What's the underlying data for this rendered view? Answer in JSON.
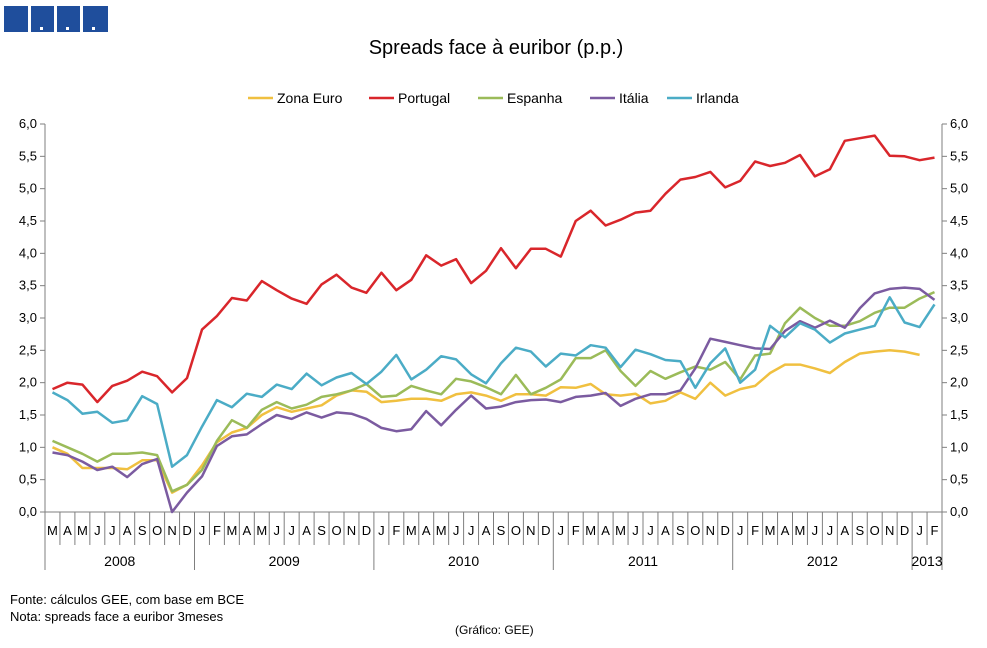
{
  "chart_data": {
    "type": "line",
    "title": "Spreads face à euribor (p.p.)",
    "ylim": [
      0,
      6
    ],
    "y_ticks": [
      "0,0",
      "0,5",
      "1,0",
      "1,5",
      "2,0",
      "2,5",
      "3,0",
      "3,5",
      "4,0",
      "4,5",
      "5,0",
      "5,5",
      "6,0"
    ],
    "y_tick_values": [
      0,
      0.5,
      1,
      1.5,
      2,
      2.5,
      3,
      3.5,
      4,
      4.5,
      5,
      5.5,
      6
    ],
    "grid": false,
    "legend_position": "top",
    "months": [
      "M",
      "A",
      "M",
      "J",
      "J",
      "A",
      "S",
      "O",
      "N",
      "D",
      "J",
      "F",
      "M",
      "A",
      "M",
      "J",
      "J",
      "A",
      "S",
      "O",
      "N",
      "D",
      "J",
      "F",
      "M",
      "A",
      "M",
      "J",
      "J",
      "A",
      "S",
      "O",
      "N",
      "D",
      "J",
      "F",
      "M",
      "A",
      "M",
      "J",
      "J",
      "A",
      "S",
      "O",
      "N",
      "D",
      "J",
      "F",
      "M",
      "A",
      "M",
      "J",
      "J",
      "A",
      "S",
      "O",
      "N",
      "D",
      "J",
      "F"
    ],
    "years": [
      {
        "label": "2008",
        "start": 0,
        "end": 10
      },
      {
        "label": "2009",
        "start": 10,
        "end": 22
      },
      {
        "label": "2010",
        "start": 22,
        "end": 34
      },
      {
        "label": "2011",
        "start": 34,
        "end": 46
      },
      {
        "label": "2012",
        "start": 46,
        "end": 58
      },
      {
        "label": "2013",
        "start": 58,
        "end": 60
      }
    ],
    "series": [
      {
        "name": "Zona Euro",
        "color": "#f0c040",
        "values": [
          1.0,
          0.9,
          0.68,
          0.68,
          0.68,
          0.66,
          0.8,
          0.8,
          0.3,
          0.42,
          0.72,
          1.08,
          1.23,
          1.3,
          1.5,
          1.62,
          1.55,
          1.6,
          1.65,
          1.8,
          1.88,
          1.86,
          1.7,
          1.72,
          1.75,
          1.75,
          1.72,
          1.82,
          1.85,
          1.8,
          1.72,
          1.82,
          1.82,
          1.8,
          1.93,
          1.92,
          1.98,
          1.82,
          1.8,
          1.83,
          1.68,
          1.72,
          1.85,
          1.75,
          2.0,
          1.8,
          1.9,
          1.95,
          2.15,
          2.28,
          2.28,
          2.22,
          2.15,
          2.32,
          2.45,
          2.48,
          2.5,
          2.48,
          2.43,
          null
        ]
      },
      {
        "name": "Portugal",
        "color": "#d9262b",
        "values": [
          1.9,
          2.0,
          1.97,
          1.7,
          1.95,
          2.03,
          2.17,
          2.1,
          1.85,
          2.07,
          2.82,
          3.03,
          3.31,
          3.27,
          3.57,
          3.43,
          3.3,
          3.22,
          3.52,
          3.67,
          3.47,
          3.39,
          3.7,
          3.43,
          3.59,
          3.97,
          3.81,
          3.91,
          3.54,
          3.73,
          4.08,
          3.77,
          4.07,
          4.07,
          3.95,
          4.5,
          4.66,
          4.43,
          4.52,
          4.63,
          4.66,
          4.92,
          5.14,
          5.18,
          5.26,
          5.02,
          5.12,
          5.42,
          5.35,
          5.4,
          5.52,
          5.19,
          5.3,
          5.74,
          5.78,
          5.82,
          5.51,
          5.5,
          5.44,
          5.48
        ]
      },
      {
        "name": "Espanha",
        "color": "#9bbb59",
        "values": [
          1.1,
          1.0,
          0.9,
          0.78,
          0.9,
          0.9,
          0.92,
          0.88,
          0.32,
          0.42,
          0.65,
          1.1,
          1.42,
          1.3,
          1.58,
          1.7,
          1.6,
          1.66,
          1.78,
          1.82,
          1.88,
          1.98,
          1.78,
          1.8,
          1.95,
          1.88,
          1.82,
          2.06,
          2.02,
          1.93,
          1.82,
          2.12,
          1.82,
          1.92,
          2.05,
          2.38,
          2.38,
          2.5,
          2.18,
          1.95,
          2.18,
          2.06,
          2.16,
          2.25,
          2.2,
          2.32,
          2.05,
          2.42,
          2.45,
          2.92,
          3.16,
          3.0,
          2.88,
          2.88,
          2.95,
          3.08,
          3.16,
          3.16,
          3.3,
          3.4
        ]
      },
      {
        "name": "Itália",
        "color": "#7b5ba0",
        "values": [
          0.92,
          0.88,
          0.78,
          0.65,
          0.7,
          0.54,
          0.74,
          0.82,
          0.0,
          0.3,
          0.55,
          1.02,
          1.17,
          1.2,
          1.36,
          1.5,
          1.44,
          1.54,
          1.46,
          1.54,
          1.52,
          1.44,
          1.3,
          1.25,
          1.28,
          1.56,
          1.34,
          1.58,
          1.8,
          1.6,
          1.63,
          1.7,
          1.73,
          1.74,
          1.7,
          1.78,
          1.8,
          1.84,
          1.64,
          1.75,
          1.82,
          1.82,
          1.88,
          2.22,
          2.68,
          2.63,
          2.58,
          2.53,
          2.52,
          2.8,
          2.95,
          2.85,
          2.96,
          2.85,
          3.15,
          3.38,
          3.45,
          3.47,
          3.45,
          3.28
        ]
      },
      {
        "name": "Irlanda",
        "color": "#4bacc6",
        "values": [
          1.85,
          1.73,
          1.52,
          1.55,
          1.38,
          1.42,
          1.79,
          1.67,
          0.7,
          0.88,
          1.32,
          1.73,
          1.62,
          1.83,
          1.78,
          1.97,
          1.9,
          2.14,
          1.96,
          2.08,
          2.15,
          1.98,
          2.17,
          2.43,
          2.05,
          2.2,
          2.41,
          2.36,
          2.13,
          1.99,
          2.3,
          2.54,
          2.48,
          2.25,
          2.45,
          2.42,
          2.58,
          2.54,
          2.24,
          2.51,
          2.44,
          2.35,
          2.33,
          1.92,
          2.3,
          2.53,
          2.0,
          2.2,
          2.88,
          2.7,
          2.92,
          2.82,
          2.62,
          2.76,
          2.82,
          2.88,
          3.32,
          2.93,
          2.86,
          3.21
        ]
      }
    ]
  },
  "footnotes": {
    "source": "Fonte: cálculos GEE, com base em BCE",
    "note": "Nota: spreads face a euribor 3meses",
    "credit": "(Gráfico:  GEE)"
  }
}
